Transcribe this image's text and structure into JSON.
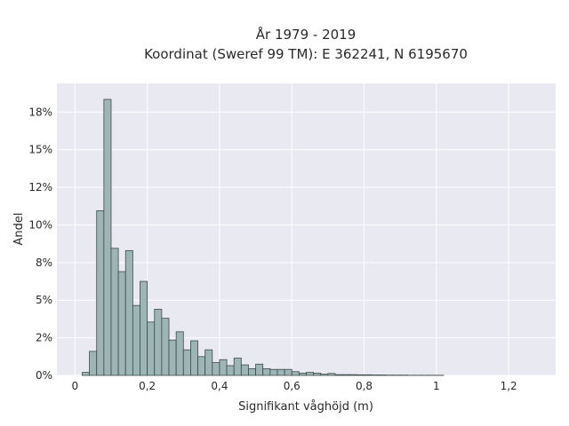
{
  "chart_data": {
    "type": "bar",
    "title_lines": [
      "År 1979 - 2019",
      "Koordinat (Sweref 99 TM): E 362241, N 6195670"
    ],
    "xlabel": "Signifikant våghöjd (m)",
    "ylabel": "Andel",
    "xlim": [
      -0.05,
      1.33
    ],
    "ylim": [
      0,
      0.1941
    ],
    "x_ticks": [
      0,
      0.2,
      0.4,
      0.6,
      0.8,
      1,
      1.2
    ],
    "x_tick_labels": [
      "0",
      "0,2",
      "0,4",
      "0,6",
      "0,8",
      "1",
      "1,2"
    ],
    "y_ticks": [
      0,
      0.025,
      0.05,
      0.075,
      0.1,
      0.125,
      0.15,
      0.175
    ],
    "y_tick_labels": [
      "0%",
      "2%",
      "5%",
      "8%",
      "10%",
      "12%",
      "15%",
      "18%"
    ],
    "bin_width": 0.02,
    "bin_start": 0.02,
    "values": [
      0.002,
      0.016,
      0.1095,
      0.1835,
      0.0845,
      0.069,
      0.083,
      0.0465,
      0.0625,
      0.0355,
      0.044,
      0.038,
      0.0235,
      0.029,
      0.017,
      0.023,
      0.0125,
      0.017,
      0.0085,
      0.0105,
      0.0065,
      0.0115,
      0.007,
      0.0045,
      0.0075,
      0.0045,
      0.004,
      0.004,
      0.004,
      0.0025,
      0.0015,
      0.002,
      0.0015,
      0.0008,
      0.0013,
      0.0005,
      0.0005,
      0.0005,
      0.0004,
      0.0004,
      0.0003,
      0.0003,
      0.0002,
      0.0002,
      0.0002,
      0.0001,
      0.0001,
      0.0001,
      0.0001,
      0.0001
    ],
    "grid": true,
    "colors": {
      "plot_bg": "#e9e9f2",
      "bar_fill": "#9db5b5",
      "bar_edge": "#3d4a4a",
      "grid": "#ffffff"
    }
  }
}
